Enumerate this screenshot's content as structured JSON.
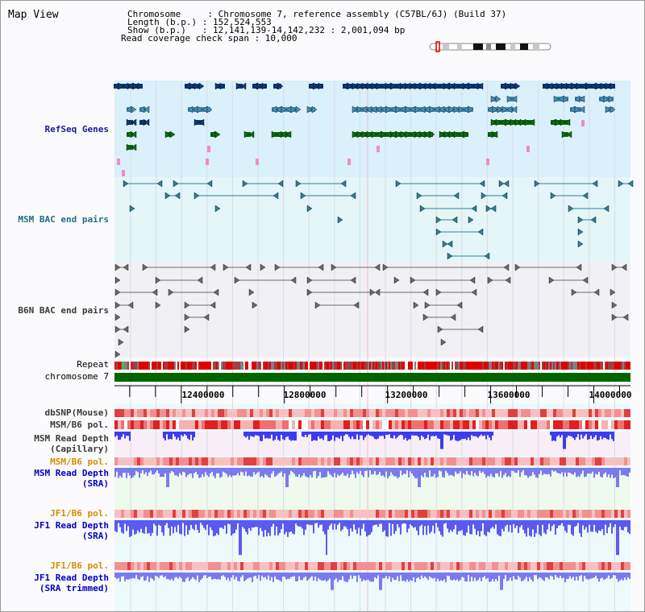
{
  "header": {
    "title": "Map View",
    "lines": [
      "Chromosome     : Chromosome 7, reference assembly (C57BL/6J) (Build 37)",
      "Length (b.p.) : 152,524,553",
      "Show (b.p.)   : 12,141,139-14,142,232 : 2,001,094 bp",
      "Read coverage check span : 10,000"
    ]
  },
  "tracks": {
    "refseq_label": "RefSeq Genes",
    "msm_bac_label": "MSM BAC end pairs",
    "b6n_bac_label": "B6N BAC end pairs",
    "repeat_label": "Repeat",
    "chromosome_label": "chromosome 7",
    "dbsnp_label": "dbSNP(Mouse)",
    "msm_b6_pol_label": "MSM/B6 pol.",
    "msm_depth_cap_label": [
      "MSM Read Depth",
      "(Capillary)"
    ],
    "msm_b6_pol2_label": "MSM/B6 pol.",
    "msm_depth_sra_label": [
      "MSM Read Depth",
      "(SRA)"
    ],
    "jf1_b6_pol_label": "JF1/B6 pol.",
    "jf1_depth_sra_label": [
      "JF1 Read Depth",
      "(SRA)"
    ],
    "jf1_b6_pol2_label": "JF1/B6 pol.",
    "jf1_depth_trim_label": [
      "JF1 Read Depth",
      "(SRA trimmed)"
    ]
  },
  "axis": {
    "range_bp": [
      12141139,
      14142232
    ],
    "ticks": [
      {
        "bp": 12400000,
        "label": "12400000"
      },
      {
        "bp": 12800000,
        "label": "12800000"
      },
      {
        "bp": 13200000,
        "label": "13200000"
      },
      {
        "bp": 13600000,
        "label": "13600000"
      },
      {
        "bp": 14000000,
        "label": "14000000"
      }
    ]
  },
  "colors": {
    "refseq_bg": "#daf0fa",
    "bac_bg": "#e4f6f8",
    "b6n_bg": "#f1f1f5",
    "gene_navy": "#0f3a78",
    "gene_steel": "#4690b8",
    "gene_green": "#0e6e0e",
    "gene_pink": "#f08cc0",
    "bac_teal": "#2c8096",
    "bac_grey": "#6a6a6a",
    "chromosome": "#006400",
    "depth_blue": "#3c3cf0",
    "depth_light_blue": "#7a7af0"
  }
}
